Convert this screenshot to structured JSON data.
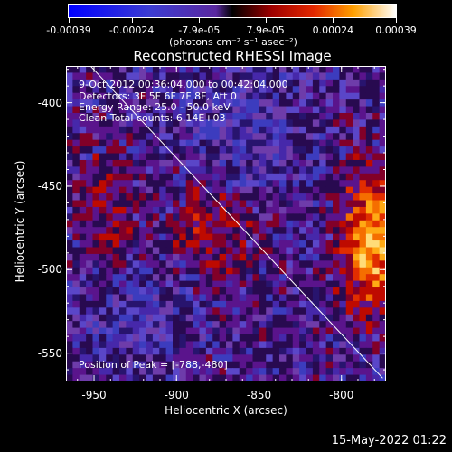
{
  "chart_data": {
    "type": "heatmap",
    "title": "Reconstructed RHESSI Image",
    "xlabel": "Heliocentric X (arcsec)",
    "ylabel": "Heliocentric Y (arcsec)",
    "xlim": [
      -967,
      -773
    ],
    "ylim": [
      -567,
      -378
    ],
    "x_ticks": [
      -950,
      -900,
      -850,
      -800
    ],
    "y_ticks": [
      -400,
      -450,
      -500,
      -550
    ],
    "colorbar": {
      "ticks": [
        "-0.00039",
        "-0.00024",
        "-7.9e-05",
        "7.9e-05",
        "0.00024",
        "0.00039"
      ],
      "tick_values": [
        -0.00039,
        -0.00024,
        -7.9e-05,
        7.9e-05,
        0.00024,
        0.00039
      ],
      "range": [
        -0.00039,
        0.00039
      ],
      "units": "(photons cm⁻² s⁻¹ asec⁻²)"
    },
    "annotations": {
      "time_range": "9-Oct-2012 00:36:04.000 to 00:42:04.000",
      "detectors": "Detectors: 3F 5F 6F 7F 8F, Att 0",
      "energy": "Energy Range: 25.0 - 50.0 keV",
      "method": "Clean     Total counts: 6.14E+03",
      "peak": "Position of Peak = [-788,-480]"
    },
    "limb_line": {
      "x": [
        -955,
        -775
      ],
      "y": [
        -375,
        -565
      ]
    },
    "peak_position": [
      -788,
      -480
    ],
    "grid": false
  },
  "footer": {
    "timestamp": "15-May-2022 01:22"
  }
}
